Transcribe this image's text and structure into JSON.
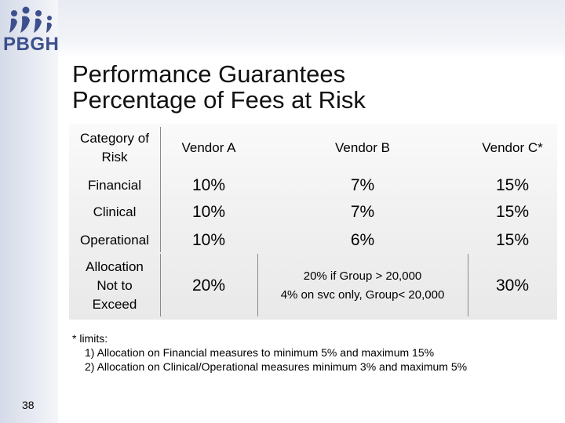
{
  "logo": {
    "text": "PBGH",
    "brand_color": "#3d4f8c"
  },
  "slide_number": "38",
  "title": {
    "line1": "Performance Guarantees",
    "line2": "Percentage of Fees at Risk"
  },
  "table": {
    "headers": [
      "Category of Risk",
      "Vendor A",
      "Vendor B",
      "Vendor C*"
    ],
    "rows": [
      {
        "label": "Financial",
        "a": "10%",
        "b": "7%",
        "c": "15%"
      },
      {
        "label": "Clinical",
        "a": "10%",
        "b": "7%",
        "c": "15%"
      },
      {
        "label": "Operational",
        "a": "10%",
        "b": "6%",
        "c": "15%"
      },
      {
        "label": "Allocation Not to Exceed",
        "a": "20%",
        "b_line1": "20% if Group > 20,000",
        "b_line2": "4% on svc only, Group< 20,000",
        "c": "30%"
      }
    ]
  },
  "notes": {
    "heading": "* limits:",
    "line1": "1) Allocation on Financial measures to minimum 5% and maximum 15%",
    "line2": "2) Allocation on Clinical/Operational measures minimum 3% and maximum 5%"
  }
}
